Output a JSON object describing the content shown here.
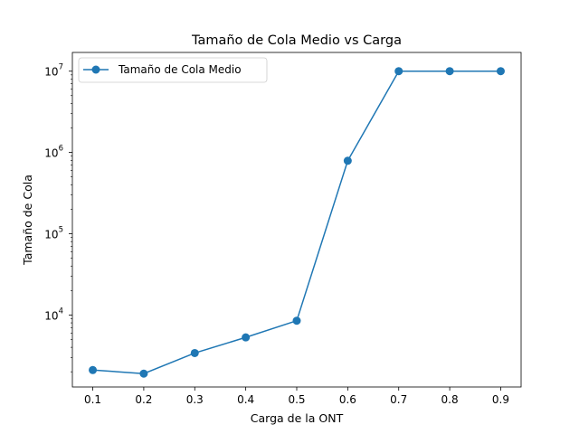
{
  "chart_data": {
    "type": "line",
    "title": "Tamaño de Cola Medio vs Carga",
    "xlabel": "Carga de la ONT",
    "ylabel": "Tamaño de Cola",
    "yscale": "log",
    "xlim": [
      0.06,
      0.94
    ],
    "ylim": [
      1300,
      17000000
    ],
    "xticks": [
      "0.1",
      "0.2",
      "0.3",
      "0.4",
      "0.5",
      "0.6",
      "0.7",
      "0.8",
      "0.9"
    ],
    "yticks": [
      {
        "value": 10000,
        "base": "10",
        "exp": "4"
      },
      {
        "value": 100000,
        "base": "10",
        "exp": "5"
      },
      {
        "value": 1000000,
        "base": "10",
        "exp": "6"
      },
      {
        "value": 10000000,
        "base": "10",
        "exp": "7"
      }
    ],
    "grid": false,
    "legend_position": "top-left",
    "series": [
      {
        "name": "Tamaño de Cola Medio",
        "color": "#1f77b4",
        "x": [
          0.1,
          0.2,
          0.3,
          0.4,
          0.5,
          0.6,
          0.7,
          0.8,
          0.9
        ],
        "y": [
          2100,
          1900,
          3400,
          5300,
          8500,
          790000,
          10000000,
          10000000,
          10000000
        ]
      }
    ]
  }
}
